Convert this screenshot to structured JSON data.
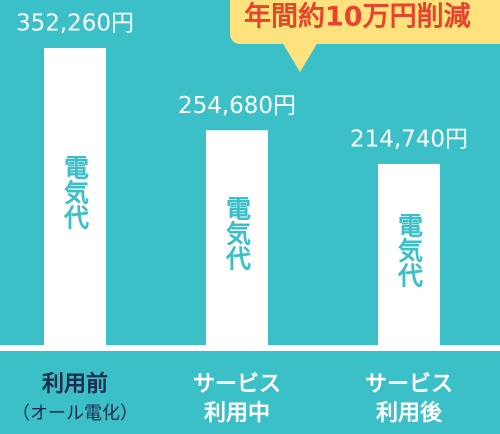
{
  "chart_data": {
    "type": "bar",
    "annotation": "年間約10万円削減",
    "categories": [
      [
        "利用前",
        "（オール電化）"
      ],
      [
        "サービス",
        "利用中"
      ],
      [
        "サービス",
        "利用後"
      ]
    ],
    "category_colors": [
      "#1f2d4d",
      "#ffffff",
      "#ffffff"
    ],
    "values": [
      352260,
      254680,
      214740
    ],
    "value_labels": [
      "352,260円",
      "254,680円",
      "214,740円"
    ],
    "bar_text": "電気代",
    "color": "#ffffff"
  }
}
